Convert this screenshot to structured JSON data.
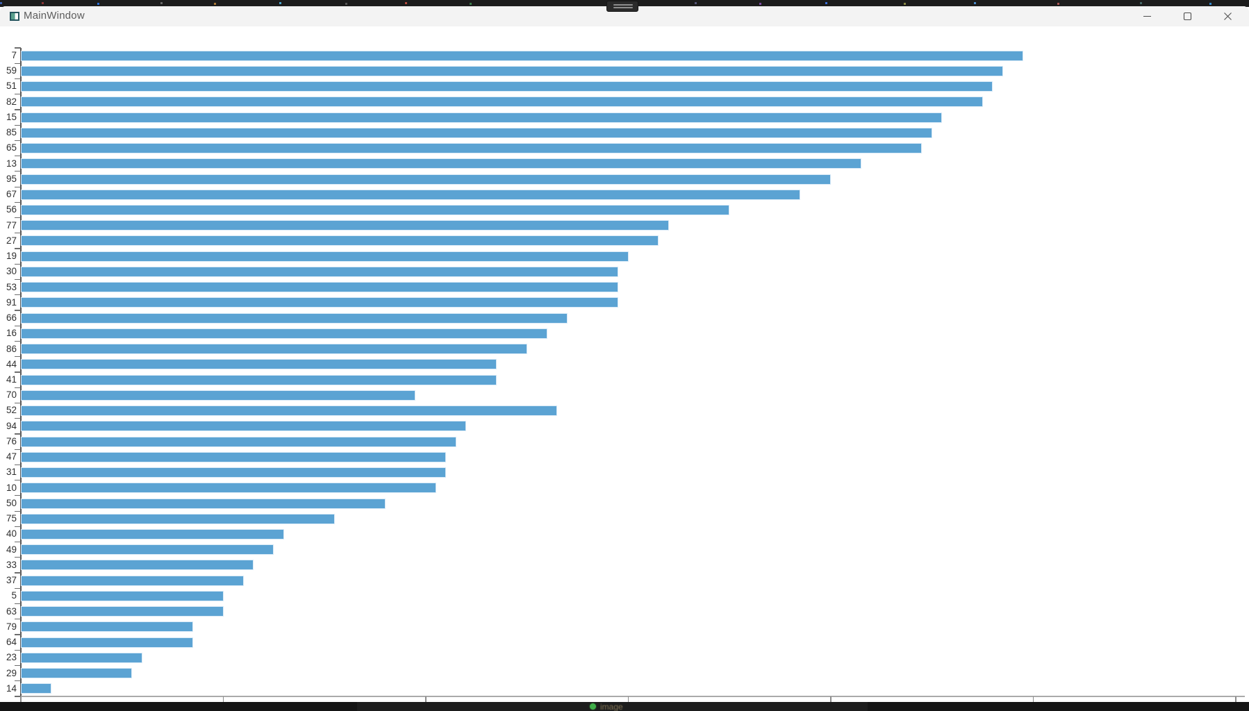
{
  "window": {
    "title": "MainWindow",
    "controls": [
      {
        "name": "minimize"
      },
      {
        "name": "maximize"
      },
      {
        "name": "close"
      }
    ]
  },
  "chart_data": {
    "type": "bar",
    "orientation": "horizontal",
    "title": "",
    "xlabel": "",
    "ylabel": "",
    "categories": [
      "7",
      "59",
      "51",
      "82",
      "15",
      "85",
      "65",
      "13",
      "95",
      "67",
      "56",
      "77",
      "27",
      "19",
      "30",
      "53",
      "91",
      "66",
      "16",
      "86",
      "44",
      "41",
      "70",
      "52",
      "94",
      "76",
      "47",
      "31",
      "10",
      "50",
      "75",
      "40",
      "49",
      "33",
      "37",
      "5",
      "63",
      "79",
      "64",
      "23",
      "29",
      "14"
    ],
    "values": [
      99,
      97,
      96,
      95,
      91,
      90,
      89,
      83,
      80,
      77,
      70,
      64,
      63,
      60,
      59,
      59,
      59,
      54,
      52,
      50,
      47,
      47,
      39,
      53,
      44,
      43,
      42,
      42,
      41,
      36,
      31,
      26,
      25,
      23,
      22,
      20,
      20,
      17,
      17,
      12,
      11,
      3
    ],
    "xlim": [
      0,
      120
    ],
    "x_ticks": [
      0,
      20,
      40,
      60,
      80,
      100,
      120
    ],
    "bar_color": "#5ba3d3",
    "grid": false,
    "legend": null
  },
  "taskbar": {
    "hint_text": "image"
  }
}
